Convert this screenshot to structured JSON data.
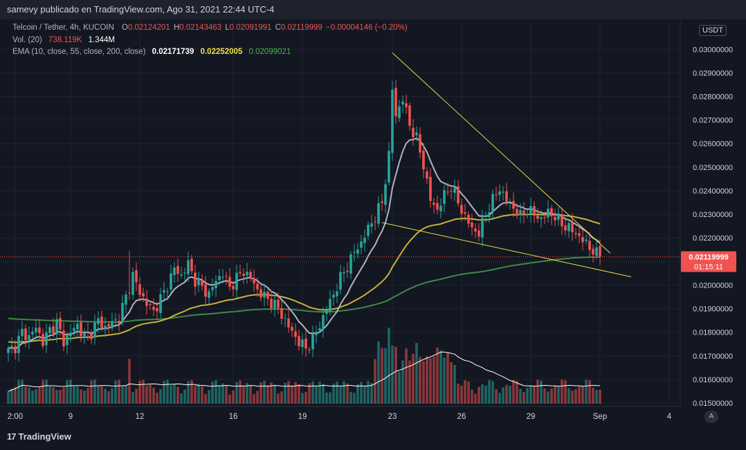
{
  "header": {
    "title": "samevy publicado en TradingView.com, Ago 31, 2021 22:44 UTC-4"
  },
  "legend": {
    "symbol": "Telcoin / Tether, 4h, KUCOIN",
    "o_label": "O",
    "o": "0.02124201",
    "h_label": "H",
    "h": "0.02143463",
    "l_label": "L",
    "l": "0.02091991",
    "c_label": "C",
    "c": "0.02119999",
    "change": "−0.00004146 (−0.20%)",
    "vol_label": "Vol. (20)",
    "vol": "738.119K",
    "vol_ma": "1.344M",
    "ema_label": "EMA (10, close, 55, close, 200, close)",
    "ema10": "0.02171739",
    "ema55": "0.02252005",
    "ema200": "0.02099021"
  },
  "price_axis": {
    "currency": "USDT",
    "top_partial": "0.0",
    "labels": [
      "0.03000000",
      "0.02900000",
      "0.02800000",
      "0.02700000",
      "0.02600000",
      "0.02500000",
      "0.02400000",
      "0.02300000",
      "0.02200000",
      "0.02100000",
      "0.02000000",
      "0.01900000",
      "0.01800000",
      "0.01700000",
      "0.01600000",
      "0.01500000"
    ],
    "last_price": "0.02119999",
    "countdown": "01:15:11"
  },
  "time_axis": {
    "labels": [
      "2:00",
      "9",
      "12",
      "16",
      "19",
      "23",
      "26",
      "29",
      "Sep",
      "4"
    ]
  },
  "auto_button": "A",
  "footer": {
    "brand": "TradingView",
    "logo_glyph": "17"
  },
  "colors": {
    "background": "#131722",
    "up": "#26a69a",
    "down": "#ef5350",
    "ema10": "#b2b5be",
    "ema55": "#c9b43a",
    "ema200": "#3f8a45",
    "trendline": "#e6e046",
    "price_tag": "#ef5350"
  },
  "chart_data": {
    "type": "candlestick",
    "symbol": "Telcoin / Tether",
    "interval": "4h",
    "exchange": "KUCOIN",
    "ylim": [
      0.015,
      0.0308
    ],
    "y_ticks": [
      0.015,
      0.016,
      0.017,
      0.018,
      0.019,
      0.02,
      0.021,
      0.022,
      0.023,
      0.024,
      0.025,
      0.026,
      0.027,
      0.028,
      0.029,
      0.03
    ],
    "x_ticks": [
      "2:00",
      "9",
      "12",
      "16",
      "19",
      "23",
      "26",
      "29",
      "Sep",
      "4"
    ],
    "last_price": 0.02119999,
    "grid": true,
    "close_anchors": [
      [
        0,
        0.0172
      ],
      [
        2,
        0.0174
      ],
      [
        4,
        0.018
      ],
      [
        6,
        0.0178
      ],
      [
        8,
        0.0182
      ],
      [
        10,
        0.0176
      ],
      [
        12,
        0.0181
      ],
      [
        14,
        0.0184
      ],
      [
        16,
        0.0176
      ],
      [
        18,
        0.018
      ],
      [
        20,
        0.0183
      ],
      [
        22,
        0.0178
      ],
      [
        24,
        0.018
      ],
      [
        26,
        0.0185
      ],
      [
        28,
        0.0182
      ],
      [
        30,
        0.0184
      ],
      [
        32,
        0.0186
      ],
      [
        34,
        0.0195
      ],
      [
        36,
        0.0204
      ],
      [
        38,
        0.0197
      ],
      [
        40,
        0.0192
      ],
      [
        42,
        0.0189
      ],
      [
        44,
        0.0194
      ],
      [
        46,
        0.02
      ],
      [
        48,
        0.0207
      ],
      [
        50,
        0.0204
      ],
      [
        52,
        0.0209
      ],
      [
        54,
        0.0202
      ],
      [
        56,
        0.0199
      ],
      [
        58,
        0.0196
      ],
      [
        60,
        0.0202
      ],
      [
        62,
        0.0205
      ],
      [
        64,
        0.0199
      ],
      [
        66,
        0.0203
      ],
      [
        68,
        0.0206
      ],
      [
        70,
        0.0203
      ],
      [
        72,
        0.0198
      ],
      [
        74,
        0.0195
      ],
      [
        76,
        0.0193
      ],
      [
        78,
        0.019
      ],
      [
        80,
        0.0185
      ],
      [
        82,
        0.018
      ],
      [
        84,
        0.0176
      ],
      [
        86,
        0.0173
      ],
      [
        88,
        0.0177
      ],
      [
        90,
        0.0183
      ],
      [
        92,
        0.019
      ],
      [
        94,
        0.0196
      ],
      [
        96,
        0.0203
      ],
      [
        98,
        0.0208
      ],
      [
        100,
        0.0214
      ],
      [
        102,
        0.0218
      ],
      [
        104,
        0.0224
      ],
      [
        106,
        0.0229
      ],
      [
        108,
        0.0235
      ],
      [
        110,
        0.0255
      ],
      [
        111,
        0.0283
      ],
      [
        112,
        0.0272
      ],
      [
        114,
        0.0279
      ],
      [
        116,
        0.0268
      ],
      [
        118,
        0.0262
      ],
      [
        120,
        0.0251
      ],
      [
        122,
        0.0236
      ],
      [
        124,
        0.0232
      ],
      [
        126,
        0.0238
      ],
      [
        128,
        0.0242
      ],
      [
        130,
        0.0235
      ],
      [
        132,
        0.0229
      ],
      [
        134,
        0.0224
      ],
      [
        136,
        0.0222
      ],
      [
        138,
        0.023
      ],
      [
        140,
        0.0236
      ],
      [
        142,
        0.0241
      ],
      [
        144,
        0.0236
      ],
      [
        146,
        0.0233
      ],
      [
        148,
        0.0229
      ],
      [
        150,
        0.0232
      ],
      [
        152,
        0.023
      ],
      [
        154,
        0.0228
      ],
      [
        156,
        0.0231
      ],
      [
        158,
        0.0229
      ],
      [
        160,
        0.0226
      ],
      [
        162,
        0.0224
      ],
      [
        164,
        0.0222
      ],
      [
        166,
        0.0219
      ],
      [
        168,
        0.0216
      ],
      [
        170,
        0.0213
      ],
      [
        171,
        0.0212
      ]
    ],
    "trendlines": [
      {
        "from": [
          111,
          0.02985
        ],
        "to": [
          174,
          0.02135
        ]
      },
      {
        "from": [
          108,
          0.02265
        ],
        "to": [
          180,
          0.02035
        ]
      }
    ]
  }
}
